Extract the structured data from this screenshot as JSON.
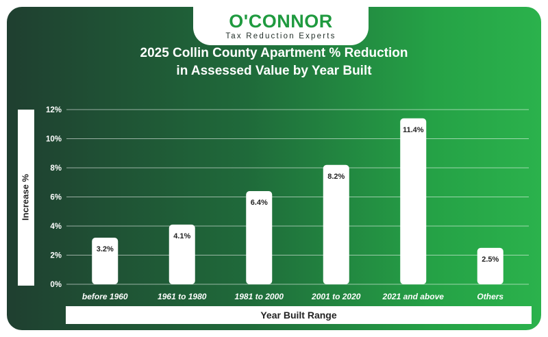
{
  "brand": {
    "name": "O'CONNOR",
    "tagline": "Tax Reduction Experts"
  },
  "colors": {
    "brand_green": "#1f9a3f",
    "bar_fill": "#ffffff",
    "grid": "#ffffff",
    "bg_left": "#1f3f30",
    "bg_right": "#2bb24c"
  },
  "chart_data": {
    "type": "bar",
    "title": "2025 Collin County Apartment % Reduction in Assessed Value by Year Built",
    "title_line1": "2025 Collin County Apartment % Reduction",
    "title_line2": "in Assessed Value by Year Built",
    "xlabel": "Year Built Range",
    "ylabel": "Increase %",
    "categories": [
      "before 1960",
      "1961 to 1980",
      "1981 to 2000",
      "2001 to 2020",
      "2021 and above",
      "Others"
    ],
    "values": [
      3.2,
      4.1,
      6.4,
      8.2,
      11.4,
      2.5
    ],
    "data_labels": [
      "3.2%",
      "4.1%",
      "6.4%",
      "8.2%",
      "11.4%",
      "2.5%"
    ],
    "ylim": [
      0,
      12
    ],
    "yticks": [
      0,
      2,
      4,
      6,
      8,
      10,
      12
    ],
    "ytick_labels": [
      "0%",
      "2%",
      "4%",
      "6%",
      "8%",
      "10%",
      "12%"
    ],
    "grid": true,
    "legend": "none"
  }
}
